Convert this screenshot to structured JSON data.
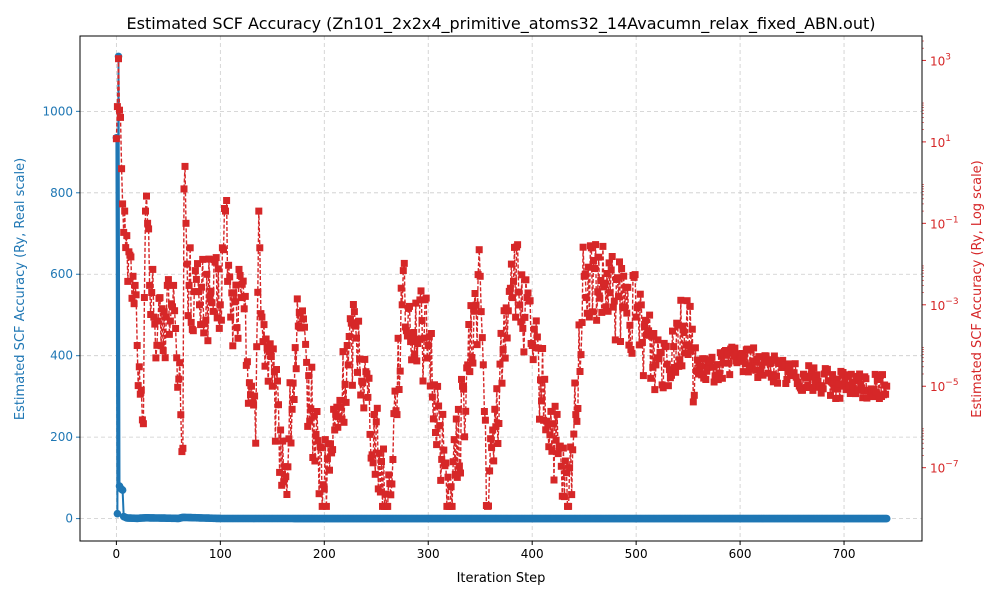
{
  "chart_data": {
    "type": "line",
    "title": "Estimated SCF Accuracy (Zn101_2x2x4_primitive_atoms32_14Avacumn_relax_fixed_ABN.out)",
    "xlabel": "Iteration Step",
    "ylabel_left": "Estimated SCF Accuracy (Ry, Real scale)",
    "ylabel_right": "Estimated SCF Accuracy (Ry, Log scale)",
    "xlim": [
      -35,
      775
    ],
    "ylim_left": [
      -55,
      1185
    ],
    "ylim_right_log10": [
      -8.8,
      3.6
    ],
    "x_ticks": [
      "0",
      "100",
      "200",
      "300",
      "400",
      "500",
      "600",
      "700"
    ],
    "y_left_ticks": [
      "0",
      "200",
      "400",
      "600",
      "800",
      "1000"
    ],
    "y_right_ticks": [
      "10",
      "10",
      "10",
      "10",
      "10",
      "10"
    ],
    "y_right_tick_exponents": [
      "3",
      "1",
      "−1",
      "−3",
      "−5",
      "−7"
    ],
    "grid": true,
    "colors": {
      "left_series": "#1f77b4",
      "right_series": "#d62728",
      "grid": "#cccccc"
    },
    "series": [
      {
        "axis": "left",
        "scale": "linear",
        "style": "solid line with circle markers",
        "n_points": 742,
        "points": [
          [
            0,
            935
          ],
          [
            1,
            12
          ],
          [
            2,
            1135
          ],
          [
            3,
            80
          ],
          [
            4,
            75
          ],
          [
            5,
            72
          ],
          [
            6,
            70
          ],
          [
            7,
            5
          ],
          [
            10,
            1.5
          ],
          [
            20,
            0.6
          ],
          [
            28,
            2
          ],
          [
            60,
            0.5
          ],
          [
            64,
            3
          ],
          [
            100,
            0.3
          ],
          [
            200,
            0.05
          ],
          [
            400,
            0.005
          ],
          [
            741,
            1e-05
          ]
        ]
      },
      {
        "axis": "right",
        "scale": "log",
        "style": "dashed line with square markers",
        "n_points": 742,
        "points": [
          [
            0,
            12
          ],
          [
            2,
            1100
          ],
          [
            3,
            60
          ],
          [
            4,
            40
          ],
          [
            5,
            2.2
          ],
          [
            6,
            0.3
          ],
          [
            8,
            0.2
          ],
          [
            10,
            0.05
          ],
          [
            12,
            0.02
          ],
          [
            14,
            0.015
          ],
          [
            16,
            0.005
          ],
          [
            18,
            0.003
          ],
          [
            20,
            0.0001
          ],
          [
            22,
            3e-05
          ],
          [
            24,
            8e-06
          ],
          [
            26,
            1.2e-06
          ],
          [
            28,
            0.2
          ],
          [
            30,
            0.1
          ],
          [
            32,
            0.003
          ],
          [
            34,
            0.002
          ],
          [
            36,
            0.0005
          ],
          [
            40,
            0.0004
          ],
          [
            44,
            0.0008
          ],
          [
            48,
            0.0005
          ],
          [
            52,
            0.0004
          ],
          [
            55,
            0.003
          ],
          [
            58,
            5e-05
          ],
          [
            60,
            1.5e-05
          ],
          [
            62,
            2e-06
          ],
          [
            64,
            3e-07
          ],
          [
            65,
            0.7
          ],
          [
            66,
            2.5
          ],
          [
            67,
            0.1
          ],
          [
            68,
            0.01
          ],
          [
            70,
            0.003
          ],
          [
            80,
            0.001
          ],
          [
            90,
            0.0015
          ],
          [
            100,
            0.001
          ],
          [
            105,
            0.2
          ],
          [
            110,
            0.0005
          ],
          [
            120,
            0.0015
          ],
          [
            130,
            1e-05
          ],
          [
            134,
            4e-07
          ],
          [
            137,
            0.2
          ],
          [
            140,
            0.0005
          ],
          [
            150,
            1e-05
          ],
          [
            163,
            6e-08
          ],
          [
            175,
            0.0003
          ],
          [
            200,
            3e-08
          ],
          [
            230,
            0.0003
          ],
          [
            261,
            1e-08
          ],
          [
            275,
            0.001
          ],
          [
            300,
            0.0001
          ],
          [
            321,
            1e-08
          ],
          [
            350,
            0.005
          ],
          [
            357,
            1e-08
          ],
          [
            380,
            0.01
          ],
          [
            400,
            0.0001
          ],
          [
            435,
            1e-08
          ],
          [
            450,
            0.005
          ],
          [
            500,
            0.0005
          ],
          [
            520,
            5e-05
          ],
          [
            545,
            0.0003
          ],
          [
            560,
            2e-05
          ],
          [
            600,
            5e-05
          ],
          [
            650,
            2e-05
          ],
          [
            700,
            1e-05
          ],
          [
            741,
            1e-05
          ]
        ]
      }
    ]
  }
}
